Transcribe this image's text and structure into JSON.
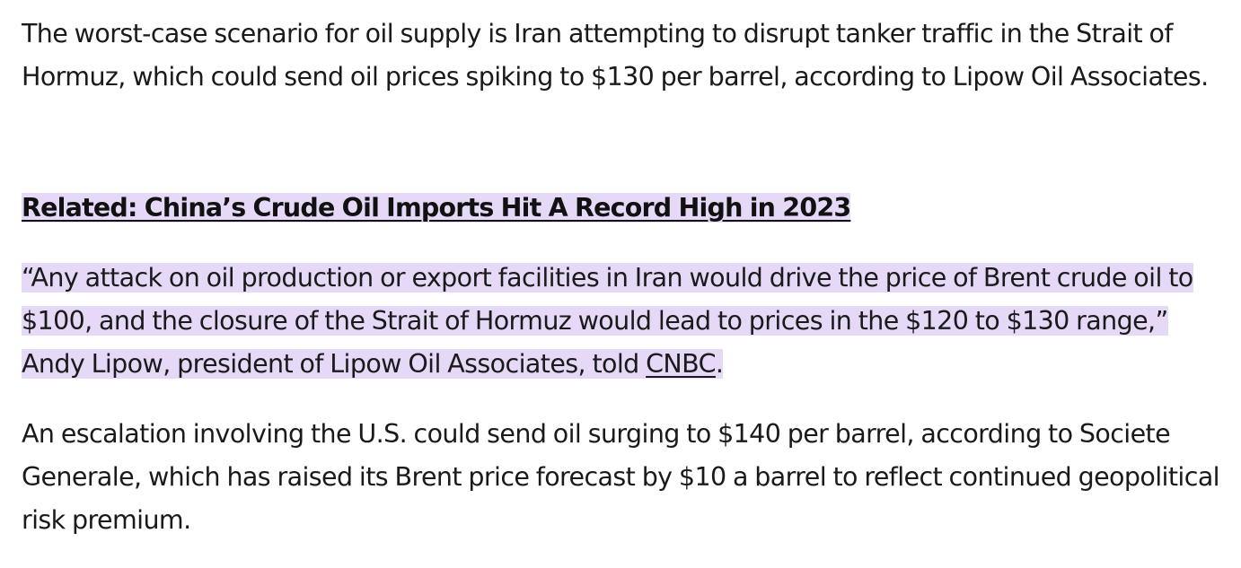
{
  "article": {
    "paragraph1": "The worst-case scenario for oil supply is Iran attempting to disrupt tanker traffic in the Strait of Hormuz, which could send oil prices spiking to $130 per barrel, according to Lipow Oil Associates.",
    "related": {
      "label": "Related: China’s Crude Oil Imports Hit A Record High in 2023"
    },
    "quote": {
      "text_before_link": "“Any attack on oil production or export facilities in Iran would drive the price of Brent crude oil to $100, and the closure of the Strait of Hormuz would lead to prices in the $120 to $130 range,” Andy Lipow, president of Lipow Oil Associates, told ",
      "link_text": "CNBC",
      "text_after_link": "."
    },
    "paragraph3": "An escalation involving the U.S. could send oil surging to $140 per barrel, according to Societe Generale, which has raised its Brent price forecast by $10 a barrel to reflect continued geopolitical risk premium."
  },
  "colors": {
    "highlight": "#e6d8f7",
    "text": "#1a1a1a"
  }
}
